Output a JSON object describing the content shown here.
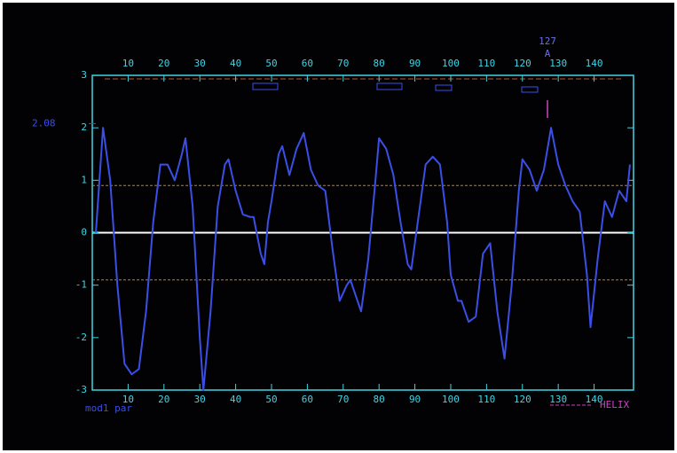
{
  "chart_data": {
    "type": "line",
    "x": [
      1,
      3,
      5,
      7,
      9,
      11,
      13,
      15,
      17,
      19,
      21,
      23,
      25,
      26,
      28,
      30,
      31,
      33,
      35,
      37,
      38,
      40,
      42,
      44,
      45,
      47,
      48,
      49,
      50,
      52,
      53,
      55,
      57,
      59,
      61,
      63,
      65,
      67,
      69,
      71,
      72,
      74,
      75,
      77,
      79,
      80,
      82,
      84,
      86,
      88,
      89,
      91,
      93,
      95,
      97,
      99,
      100,
      102,
      103,
      105,
      107,
      109,
      111,
      113,
      115,
      117,
      119,
      120,
      122,
      124,
      126,
      128,
      130,
      132,
      134,
      136,
      138,
      139,
      141,
      143,
      145,
      147,
      149,
      150
    ],
    "series": [
      {
        "color": "#3b4fe6",
        "values": [
          0,
          2.0,
          1.0,
          -1.0,
          -2.5,
          -2.7,
          -2.6,
          -1.5,
          0.2,
          1.3,
          1.3,
          1.0,
          1.5,
          1.8,
          0.5,
          -2.0,
          -3.0,
          -1.5,
          0.5,
          1.3,
          1.4,
          0.8,
          0.35,
          0.3,
          0.3,
          -0.4,
          -0.6,
          0.2,
          0.6,
          1.5,
          1.65,
          1.1,
          1.6,
          1.9,
          1.2,
          0.9,
          0.8,
          -0.3,
          -1.3,
          -1.0,
          -0.9,
          -1.3,
          -1.5,
          -0.5,
          1.0,
          1.8,
          1.6,
          1.1,
          0.2,
          -0.6,
          -0.7,
          0.3,
          1.3,
          1.45,
          1.3,
          0.2,
          -0.8,
          -1.3,
          -1.3,
          -1.7,
          -1.6,
          -0.4,
          -0.2,
          -1.5,
          -2.4,
          -1.0,
          0.8,
          1.4,
          1.2,
          0.8,
          1.2,
          2.0,
          1.3,
          0.9,
          0.6,
          0.4,
          -0.8,
          -1.8,
          -0.5,
          0.6,
          0.3,
          0.8,
          0.6,
          1.3
        ]
      }
    ],
    "xlim": [
      0,
      151
    ],
    "ylim": [
      -3,
      3
    ],
    "xticks": [
      10,
      20,
      30,
      40,
      50,
      60,
      70,
      80,
      90,
      100,
      110,
      120,
      130,
      140
    ],
    "yticks": [
      -3,
      -2,
      -1,
      0,
      1,
      2,
      3
    ],
    "reference_lines": [
      {
        "value": 0.9,
        "color": "#c0802a"
      },
      {
        "value": -0.9,
        "color": "#c0802a"
      },
      {
        "value": 0,
        "color": "#ffffff"
      }
    ],
    "y_annotation": {
      "value": 2.08
    },
    "x_marker": {
      "value": 127,
      "sublabel": "A"
    },
    "axis_label": "mod1 par",
    "legend": [
      {
        "name": "HELIX",
        "color": "#d040c8"
      }
    ],
    "axis_color": "#3fd4e4"
  }
}
